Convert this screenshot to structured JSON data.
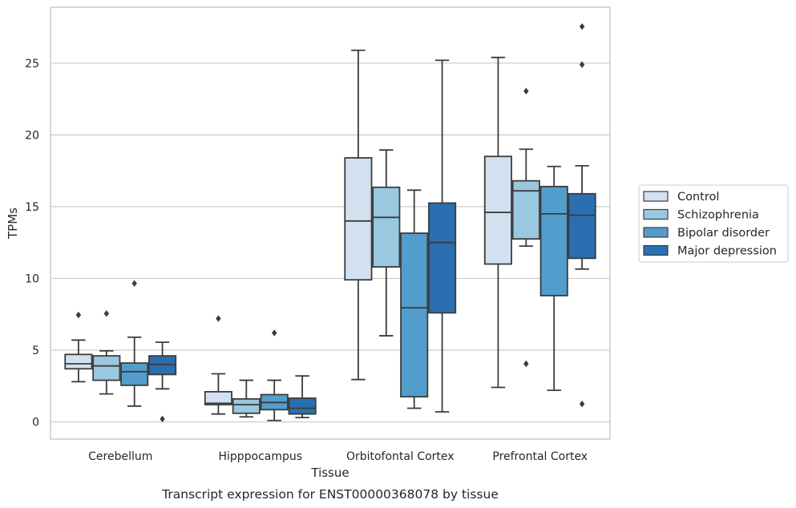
{
  "chart_data": {
    "type": "box",
    "caption": "Transcript expression for ENST00000368078 by tissue",
    "xlabel": "Tissue",
    "ylabel": "TPMs",
    "ylim": [
      -1.2,
      28.9
    ],
    "yticks": [
      0,
      5,
      10,
      15,
      20,
      25
    ],
    "grid": "horizontal",
    "legend_position": "right",
    "categories": [
      "Cerebellum",
      "Hipppocampus",
      "Orbitofontal Cortex",
      "Prefrontal Cortex"
    ],
    "series": [
      {
        "name": "Control",
        "color": "#d2e1f0",
        "boxes": [
          {
            "whisker_low": 2.8,
            "q1": 3.7,
            "median": 4.05,
            "q3": 4.7,
            "whisker_high": 5.7,
            "outliers": [
              7.45
            ]
          },
          {
            "whisker_low": 0.55,
            "q1": 1.2,
            "median": 1.3,
            "q3": 2.1,
            "whisker_high": 3.35,
            "outliers": [
              7.2
            ]
          },
          {
            "whisker_low": 2.95,
            "q1": 9.9,
            "median": 14.0,
            "q3": 18.4,
            "whisker_high": 25.9,
            "outliers": []
          },
          {
            "whisker_low": 2.4,
            "q1": 11.0,
            "median": 14.6,
            "q3": 18.5,
            "whisker_high": 25.4,
            "outliers": []
          }
        ]
      },
      {
        "name": "Schizophrenia",
        "color": "#9ac8e0",
        "boxes": [
          {
            "whisker_low": 1.95,
            "q1": 2.9,
            "median": 3.9,
            "q3": 4.6,
            "whisker_high": 4.95,
            "outliers": [
              7.55
            ]
          },
          {
            "whisker_low": 0.35,
            "q1": 0.6,
            "median": 1.2,
            "q3": 1.6,
            "whisker_high": 2.9,
            "outliers": []
          },
          {
            "whisker_low": 6.0,
            "q1": 10.8,
            "median": 14.25,
            "q3": 16.35,
            "whisker_high": 18.95,
            "outliers": []
          },
          {
            "whisker_low": 12.25,
            "q1": 12.75,
            "median": 16.1,
            "q3": 16.8,
            "whisker_high": 19.0,
            "outliers": [
              23.05,
              4.05
            ]
          }
        ]
      },
      {
        "name": "Bipolar disorder",
        "color": "#529dcb",
        "boxes": [
          {
            "whisker_low": 1.1,
            "q1": 2.55,
            "median": 3.5,
            "q3": 4.1,
            "whisker_high": 5.9,
            "outliers": [
              9.65
            ]
          },
          {
            "whisker_low": 0.1,
            "q1": 0.85,
            "median": 1.35,
            "q3": 1.9,
            "whisker_high": 2.9,
            "outliers": [
              6.2
            ]
          },
          {
            "whisker_low": 0.95,
            "q1": 1.75,
            "median": 7.95,
            "q3": 13.15,
            "whisker_high": 16.15,
            "outliers": []
          },
          {
            "whisker_low": 2.2,
            "q1": 8.8,
            "median": 14.5,
            "q3": 16.4,
            "whisker_high": 17.8,
            "outliers": []
          }
        ]
      },
      {
        "name": "Major depression",
        "color": "#2a6fb0",
        "boxes": [
          {
            "whisker_low": 2.3,
            "q1": 3.3,
            "median": 4.0,
            "q3": 4.6,
            "whisker_high": 5.55,
            "outliers": [
              0.2
            ]
          },
          {
            "whisker_low": 0.3,
            "q1": 0.55,
            "median": 0.95,
            "q3": 1.65,
            "whisker_high": 3.2,
            "outliers": []
          },
          {
            "whisker_low": 0.7,
            "q1": 7.6,
            "median": 12.5,
            "q3": 15.25,
            "whisker_high": 25.2,
            "outliers": []
          },
          {
            "whisker_low": 10.65,
            "q1": 11.4,
            "median": 14.4,
            "q3": 15.9,
            "whisker_high": 17.85,
            "outliers": [
              27.55,
              24.9,
              1.25
            ]
          }
        ]
      }
    ],
    "styles": {
      "edge_color": "#3c3c3c",
      "grid_color": "#cccccc",
      "frame_color": "#cccccc"
    }
  }
}
